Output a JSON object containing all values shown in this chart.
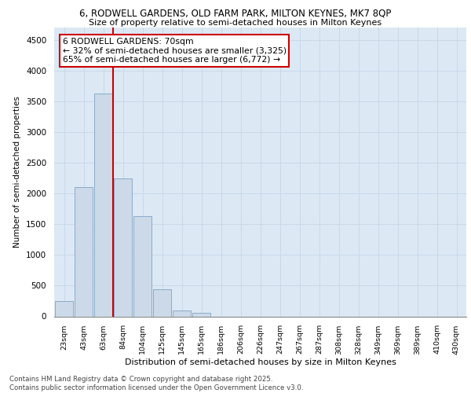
{
  "title_line1": "6, RODWELL GARDENS, OLD FARM PARK, MILTON KEYNES, MK7 8QP",
  "title_line2": "Size of property relative to semi-detached houses in Milton Keynes",
  "xlabel": "Distribution of semi-detached houses by size in Milton Keynes",
  "ylabel": "Number of semi-detached properties",
  "categories": [
    "23sqm",
    "43sqm",
    "63sqm",
    "84sqm",
    "104sqm",
    "125sqm",
    "145sqm",
    "165sqm",
    "186sqm",
    "206sqm",
    "226sqm",
    "247sqm",
    "267sqm",
    "287sqm",
    "308sqm",
    "328sqm",
    "349sqm",
    "369sqm",
    "389sqm",
    "410sqm",
    "430sqm"
  ],
  "values": [
    250,
    2100,
    3625,
    2250,
    1625,
    440,
    100,
    60,
    0,
    0,
    0,
    0,
    0,
    0,
    0,
    0,
    0,
    0,
    0,
    0,
    0
  ],
  "bar_color": "#ccd9e8",
  "bar_edge_color": "#8aabc8",
  "vline_color": "#cc0000",
  "vline_x_data": 2.5,
  "annotation_box_text": "6 RODWELL GARDENS: 70sqm\n← 32% of semi-detached houses are smaller (3,325)\n65% of semi-detached houses are larger (6,772) →",
  "annotation_box_color": "#cc0000",
  "annotation_box_facecolor": "white",
  "ylim": [
    0,
    4700
  ],
  "yticks": [
    0,
    500,
    1000,
    1500,
    2000,
    2500,
    3000,
    3500,
    4000,
    4500
  ],
  "grid_color": "#c8d8e8",
  "bg_color": "#dce9f5",
  "footer": "Contains HM Land Registry data © Crown copyright and database right 2025.\nContains public sector information licensed under the Open Government Licence v3.0."
}
